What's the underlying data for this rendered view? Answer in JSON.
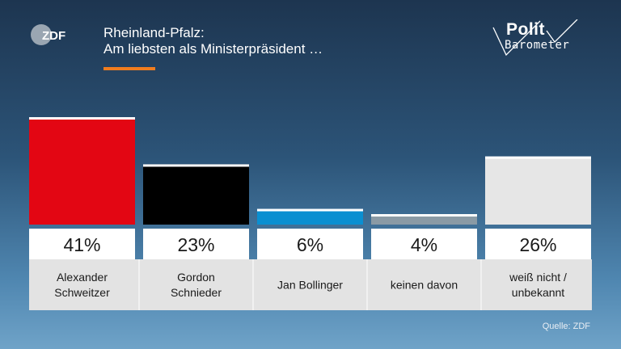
{
  "logo": {
    "text": "ZDF"
  },
  "header": {
    "title_line1": "Rheinland-Pfalz:",
    "title_line2": "Am liebsten als Ministerpräsident …"
  },
  "brand": {
    "polit": "Polit",
    "barometer": "Barometer"
  },
  "source": "Quelle: ZDF",
  "colors": {
    "accent": "#f07d1f"
  },
  "chart_data": {
    "type": "bar",
    "categories": [
      [
        "Alexander",
        "Schweitzer"
      ],
      [
        "Gordon",
        "Schnieder"
      ],
      [
        "Jan Bollinger"
      ],
      [
        "keinen davon"
      ],
      [
        "weiß nicht /",
        "unbekannt"
      ]
    ],
    "values": [
      41,
      23,
      6,
      4,
      26
    ],
    "value_labels": [
      "41%",
      "23%",
      "6%",
      "4%",
      "26%"
    ],
    "bar_colors": [
      "#e30613",
      "#000000",
      "#0a8fd1",
      "#8a9aa5",
      "#e6e6e6"
    ],
    "ylim": [
      0,
      41
    ]
  }
}
